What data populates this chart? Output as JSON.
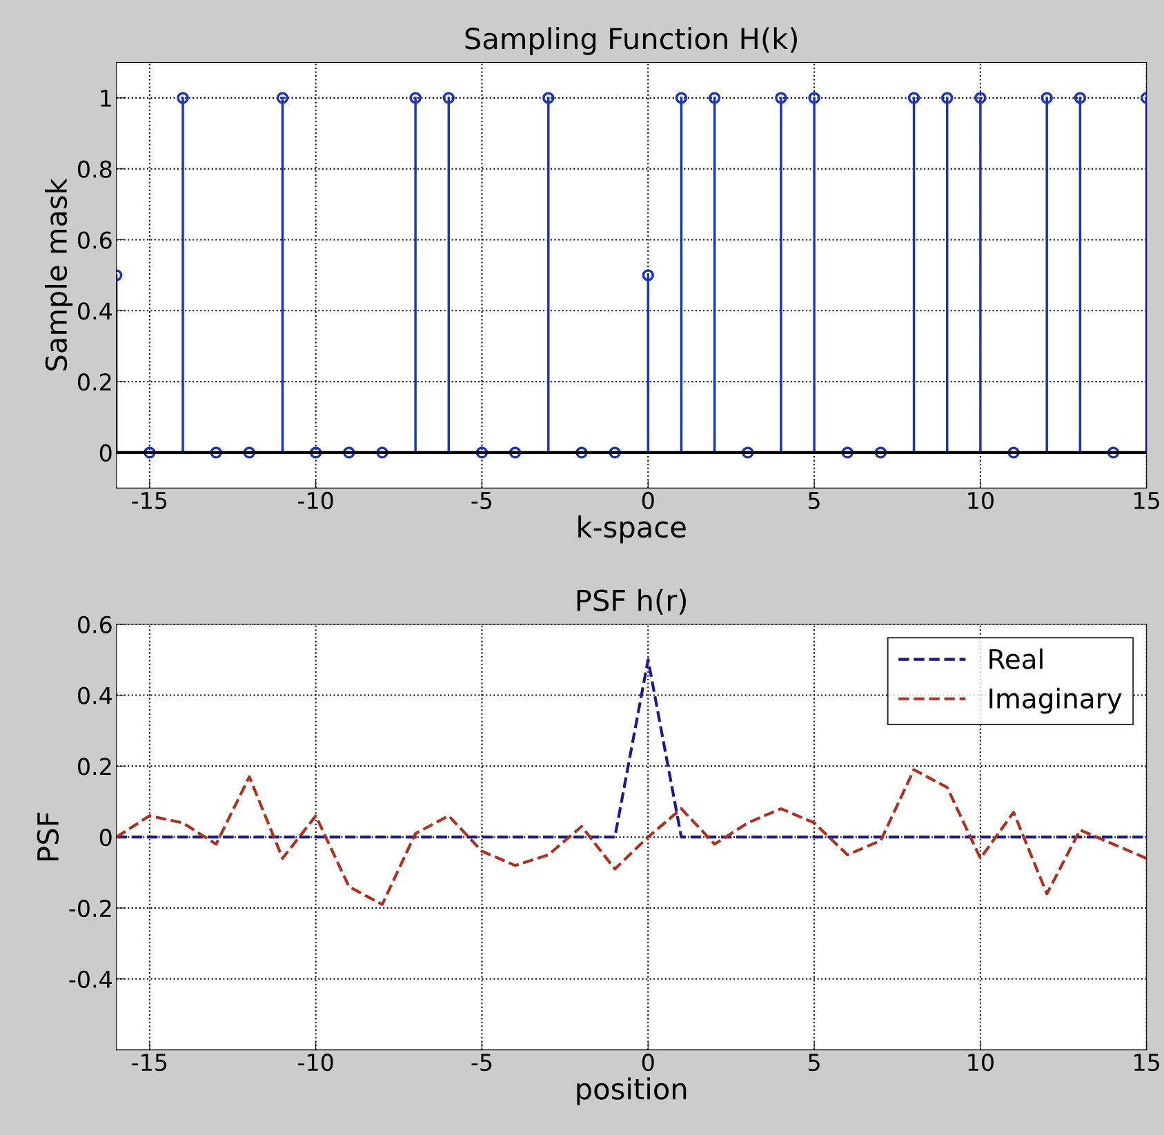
{
  "chart_data": [
    {
      "type": "lollipop",
      "title": "Sampling Function H(k)",
      "xlabel": "k-space",
      "ylabel": "Sample mask",
      "x": [
        -16,
        -15,
        -14,
        -13,
        -12,
        -11,
        -10,
        -9,
        -8,
        -7,
        -6,
        -5,
        -4,
        -3,
        -2,
        -1,
        0,
        1,
        2,
        3,
        4,
        5,
        6,
        7,
        8,
        9,
        10,
        11,
        12,
        13,
        14,
        15
      ],
      "values": [
        0.5,
        0,
        1,
        0,
        0,
        1,
        0,
        0,
        0,
        1,
        1,
        0,
        0,
        1,
        0,
        0,
        0.5,
        1,
        1,
        0,
        1,
        1,
        0,
        0,
        1,
        1,
        1,
        0,
        1,
        1,
        0,
        1
      ],
      "color": "#1c34b8",
      "marker": "circle",
      "grid": true,
      "legend": false,
      "xlim": [
        -16,
        15
      ],
      "xticks": [
        -15,
        -10,
        -5,
        0,
        5,
        10,
        15
      ],
      "ylim": [
        -0.1,
        1.1
      ],
      "yticks": [
        0,
        0.2,
        0.4,
        0.6,
        0.8,
        1
      ]
    },
    {
      "type": "line",
      "title": "PSF h(r)",
      "xlabel": "position",
      "ylabel": "PSF",
      "x": [
        -16,
        -15,
        -14,
        -13,
        -12,
        -11,
        -10,
        -9,
        -8,
        -7,
        -6,
        -5,
        -4,
        -3,
        -2,
        -1,
        0,
        1,
        2,
        3,
        4,
        5,
        6,
        7,
        8,
        9,
        10,
        11,
        12,
        13,
        14,
        15
      ],
      "series": [
        {
          "name": "Real",
          "color": "#1a1a8c",
          "values": [
            0,
            0,
            0,
            0,
            0,
            0,
            0,
            0,
            0,
            0,
            0,
            0,
            0,
            0,
            0,
            0,
            0.5,
            0,
            0,
            0,
            0,
            0,
            0,
            0,
            0,
            0,
            0,
            0,
            0,
            0,
            0,
            0
          ]
        },
        {
          "name": "Imaginary",
          "color": "#b03020",
          "values": [
            0,
            0.06,
            0.04,
            -0.02,
            0.17,
            -0.06,
            0.06,
            -0.14,
            -0.19,
            0.01,
            0.06,
            -0.04,
            -0.08,
            -0.05,
            0.03,
            -0.09,
            0,
            0.08,
            -0.02,
            0.04,
            0.08,
            0.04,
            -0.05,
            -0.01,
            0.19,
            0.14,
            -0.06,
            0.07,
            -0.16,
            0.02,
            -0.02,
            -0.06
          ]
        }
      ],
      "line_style": "dashed",
      "grid": true,
      "legend": "top right",
      "xlim": [
        -16,
        15
      ],
      "xticks": [
        -15,
        -10,
        -5,
        0,
        5,
        10,
        15
      ],
      "ylim": [
        -0.6,
        0.6
      ],
      "yticks": [
        -0.4,
        -0.2,
        0,
        0.2,
        0.4,
        0.6
      ]
    }
  ]
}
